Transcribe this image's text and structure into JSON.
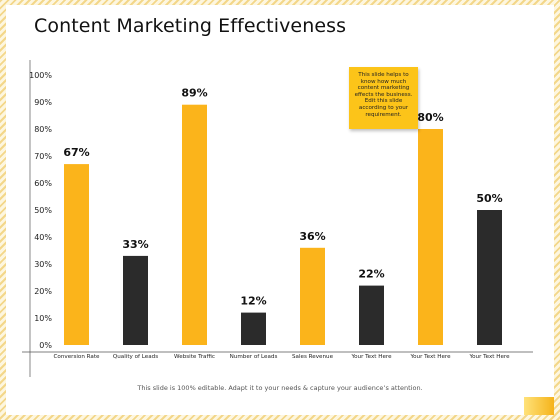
{
  "title": "Content Marketing Effectiveness",
  "note": "This slide helps to know how much content marketing effects the business. Edit this slide according to your requirement.",
  "footer": "This slide is 100% editable. Adapt it to your needs & capture your audience’s attention.",
  "colors": {
    "accent": "#fbb41b",
    "dark": "#2b2b2b"
  },
  "chart_data": {
    "type": "bar",
    "categories": [
      "Conversion Rate",
      "Quality of Leads",
      "Website Traffic",
      "Number of Leads",
      "Sales Revenue",
      "Your Text Here",
      "Your Text Here",
      "Your Text Here"
    ],
    "values": [
      67,
      33,
      89,
      12,
      36,
      22,
      80,
      50
    ],
    "data_labels": [
      "67%",
      "33%",
      "89%",
      "12%",
      "36%",
      "22%",
      "80%",
      "50%"
    ],
    "bar_colors": [
      "#fbb41b",
      "#2b2b2b",
      "#fbb41b",
      "#2b2b2b",
      "#fbb41b",
      "#2b2b2b",
      "#fbb41b",
      "#2b2b2b"
    ],
    "yticks": [
      "0%",
      "10%",
      "20%",
      "30%",
      "40%",
      "50%",
      "60%",
      "70%",
      "80%",
      "90%",
      "100%"
    ],
    "ylim": [
      0,
      100
    ],
    "grid": false
  }
}
